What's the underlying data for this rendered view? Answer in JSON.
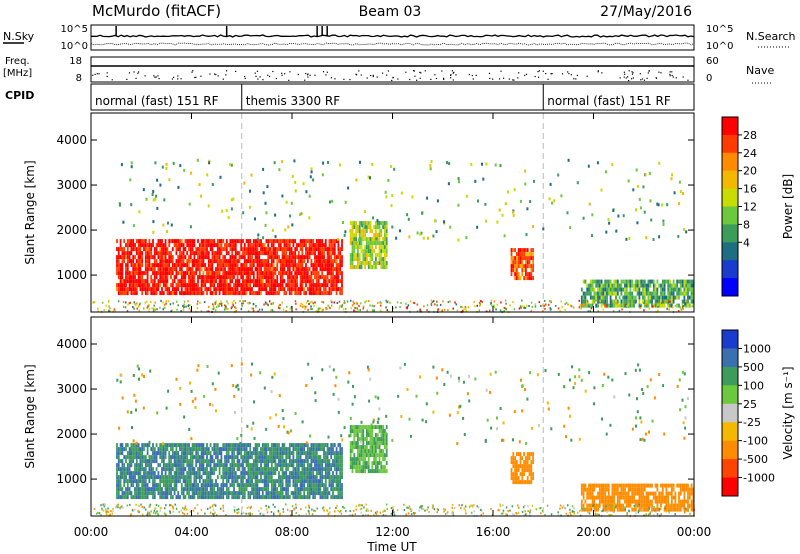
{
  "header": {
    "station": "McMurdo (fitACF)",
    "beam": "Beam 03",
    "date": "27/May/2016"
  },
  "top_panels": {
    "nsky_label": "N.Sky",
    "nsky_ticks": [
      "10^5",
      "10^0"
    ],
    "nsearch_label": "N.Search",
    "nsearch_ticks": [
      "10^5",
      "10^0"
    ],
    "freq_label": "Freq.",
    "freq_unit": "[MHz]",
    "freq_ticks": [
      "18",
      "8"
    ],
    "nave_label": "Nave",
    "nave_ticks": [
      "60",
      "0"
    ],
    "cpid_label": "CPID"
  },
  "cpid_segments": [
    {
      "label": "normal (fast) 151 RF",
      "start_hour": 0,
      "end_hour": 6
    },
    {
      "label": "themis 3300 RF",
      "start_hour": 6,
      "end_hour": 18
    },
    {
      "label": "normal (fast) 151 RF",
      "start_hour": 18,
      "end_hour": 24
    }
  ],
  "chart_data": [
    {
      "type": "heatmap",
      "name": "power",
      "xlabel": "Time UT",
      "ylabel": "Slant Range [km]",
      "xlim": [
        0,
        24
      ],
      "ylim": [
        180,
        4600
      ],
      "x_ticks": [
        "00:00",
        "04:00",
        "08:00",
        "12:00",
        "16:00",
        "20:00",
        "00:00"
      ],
      "y_ticks": [
        "1000",
        "2000",
        "3000",
        "4000"
      ],
      "colorbar_label": "Power [dB]",
      "colorbar_ticks": [
        "28",
        "24",
        "20",
        "16",
        "12",
        "8",
        "4"
      ],
      "colorbar_colors": [
        "#ff0000",
        "#ff3c00",
        "#ff8c00",
        "#f5b800",
        "#c8dc00",
        "#6cc83c",
        "#3c9c5a",
        "#1e6e82",
        "#1a3ccc",
        "#0000ff"
      ],
      "backscatter_regions": [
        {
          "t_start": 1.0,
          "t_end": 10.0,
          "r_min": 600,
          "r_max": 1800,
          "level_db": 28
        },
        {
          "t_start": 10.3,
          "t_end": 11.8,
          "r_min": 1200,
          "r_max": 2200,
          "level_db": 14
        },
        {
          "t_start": 16.7,
          "t_end": 17.6,
          "r_min": 900,
          "r_max": 1600,
          "level_db": 24
        },
        {
          "t_start": 19.5,
          "t_end": 24.0,
          "r_min": 300,
          "r_max": 900,
          "level_db": 10
        }
      ]
    },
    {
      "type": "heatmap",
      "name": "velocity",
      "xlabel": "Time UT",
      "ylabel": "Slant Range [km]",
      "xlim": [
        0,
        24
      ],
      "ylim": [
        180,
        4600
      ],
      "x_ticks": [
        "00:00",
        "04:00",
        "08:00",
        "12:00",
        "16:00",
        "20:00",
        "00:00"
      ],
      "y_ticks": [
        "1000",
        "2000",
        "3000",
        "4000"
      ],
      "colorbar_label": "Velocity [m s⁻¹]",
      "colorbar_ticks": [
        "1000",
        "500",
        "100",
        "25",
        "-25",
        "-100",
        "-500",
        "-1000"
      ],
      "colorbar_colors": [
        "#1a3ccc",
        "#3a70b0",
        "#3c9c5a",
        "#6cc83c",
        "#c8c8c8",
        "#f5b800",
        "#ff8c00",
        "#ff4400",
        "#ff0000"
      ],
      "backscatter_regions": [
        {
          "t_start": 1.0,
          "t_end": 10.0,
          "r_min": 600,
          "r_max": 1800,
          "level_ms": 500
        },
        {
          "t_start": 10.3,
          "t_end": 11.8,
          "r_min": 1200,
          "r_max": 2200,
          "level_ms": 100
        },
        {
          "t_start": 16.7,
          "t_end": 17.6,
          "r_min": 900,
          "r_max": 1600,
          "level_ms": -300
        },
        {
          "t_start": 19.5,
          "t_end": 24.0,
          "r_min": 300,
          "r_max": 900,
          "level_ms": -150
        }
      ]
    }
  ]
}
